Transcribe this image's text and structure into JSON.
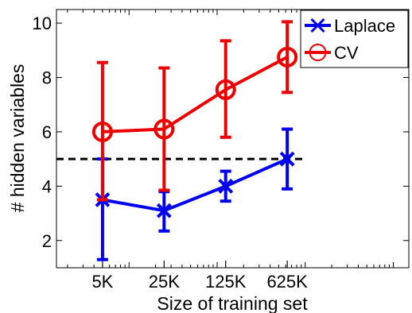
{
  "chart_data": {
    "type": "line",
    "xlabel": "Size of training set",
    "ylabel": "# hidden variables",
    "x_scale": "log",
    "categories": [
      "5K",
      "25K",
      "125K",
      "625K"
    ],
    "x": [
      5000,
      25000,
      125000,
      625000
    ],
    "xlim": [
      1500,
      15000000
    ],
    "ylim": [
      1,
      10.5
    ],
    "yticks": [
      2,
      4,
      6,
      8,
      10
    ],
    "grid": false,
    "legend_position": "top-right",
    "series": [
      {
        "name": "Laplace",
        "color": "#0000ee",
        "marker": "x",
        "values": [
          3.5,
          3.1,
          4.0,
          5.0
        ],
        "err_low": [
          1.3,
          2.35,
          3.45,
          3.9
        ],
        "err_high": [
          5.0,
          3.8,
          4.55,
          6.1
        ]
      },
      {
        "name": "CV",
        "color": "#ee0000",
        "marker": "o",
        "values": [
          6.0,
          6.1,
          7.55,
          8.75
        ],
        "err_low": [
          3.5,
          3.85,
          5.8,
          7.45
        ],
        "err_high": [
          8.55,
          8.35,
          9.35,
          10.05
        ]
      }
    ],
    "reference_line": {
      "y": 5.0,
      "x_range": [
        1500,
        950000
      ],
      "style": "dashed",
      "color": "#000000"
    }
  }
}
